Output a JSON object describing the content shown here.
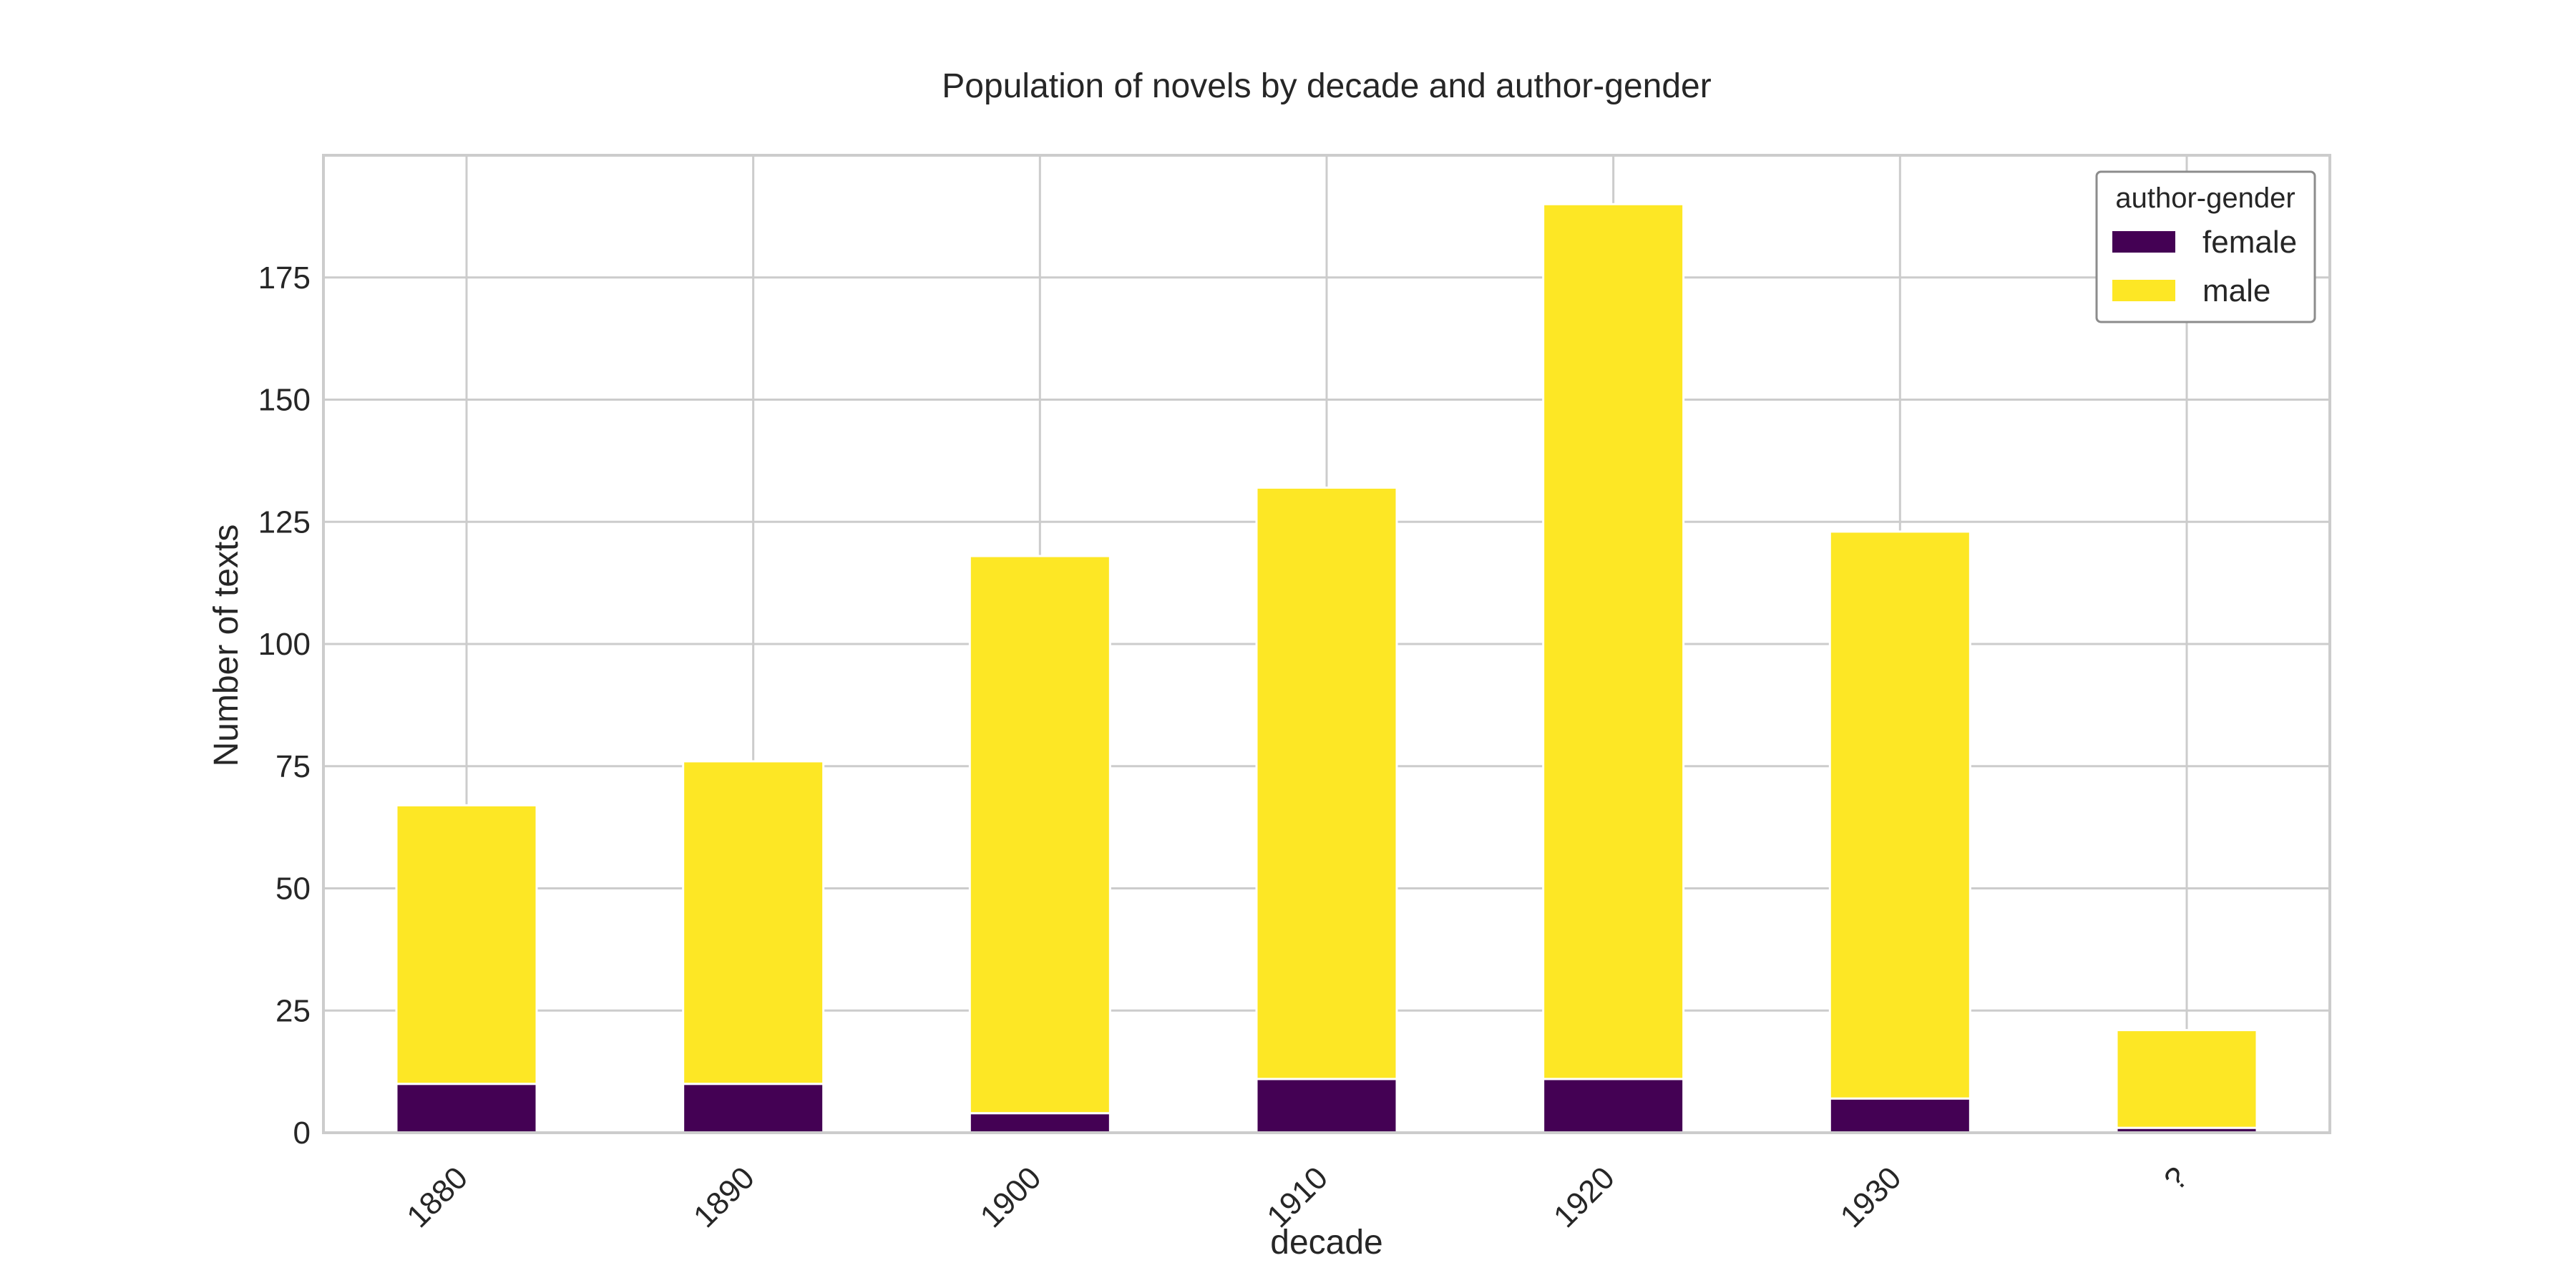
{
  "chart_data": {
    "type": "bar",
    "stacked": true,
    "title": "Population of novels by decade and author-gender",
    "xlabel": "decade",
    "ylabel": "Number of texts",
    "categories": [
      "1880",
      "1890",
      "1900",
      "1910",
      "1920",
      "1930",
      "?"
    ],
    "series": [
      {
        "name": "female",
        "color": "#440154",
        "values": [
          10,
          10,
          4,
          11,
          11,
          7,
          1
        ]
      },
      {
        "name": "male",
        "color": "#fde725",
        "values": [
          57,
          66,
          114,
          121,
          179,
          116,
          20
        ]
      }
    ],
    "ylim": [
      0,
      200
    ],
    "yticks": [
      0,
      25,
      50,
      75,
      100,
      125,
      150,
      175
    ],
    "grid": true,
    "legend": {
      "title": "author-gender",
      "placement": "top-right"
    }
  }
}
